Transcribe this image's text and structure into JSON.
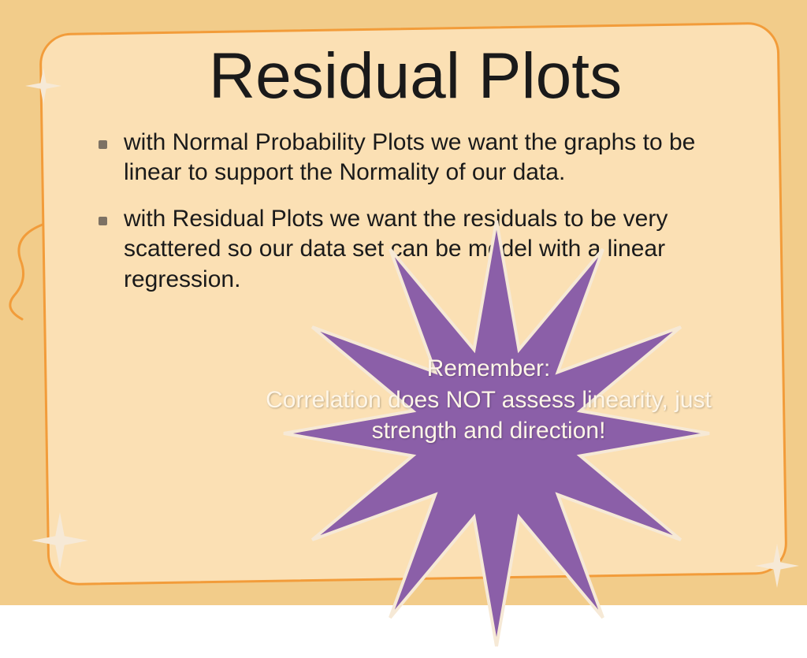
{
  "colors": {
    "slide_bg": "#f2cc8a",
    "frame_fill": "#fbe0b4",
    "frame_border": "#f29c3a",
    "title_color": "#1a1a1a",
    "body_text": "#1a1a1a",
    "bullet_color": "#7d7264",
    "star_fill": "#8b5fa8",
    "star_stroke": "#f6e9d6",
    "callout_text": "#fef6e8",
    "deco_star_fill": "#f6e9d6",
    "swirl_stroke": "#f29c3a"
  },
  "typography": {
    "title_fontsize": 82,
    "body_fontsize": 30,
    "callout_fontsize": 30
  },
  "title": "Residual Plots",
  "bullets": [
    "with Normal Probability Plots we want the graphs to be linear to support the Normality of our data.",
    "with Residual Plots we want the residuals to be very scattered so our data set can be model with a linear regression."
  ],
  "callout": {
    "line1": "Remember:",
    "line2": "Correlation does NOT assess linearity, just",
    "line3": "strength and direction!"
  },
  "starburst": {
    "points": 12,
    "outer_radius": 270,
    "inner_radius": 110,
    "stroke_width": 4
  }
}
